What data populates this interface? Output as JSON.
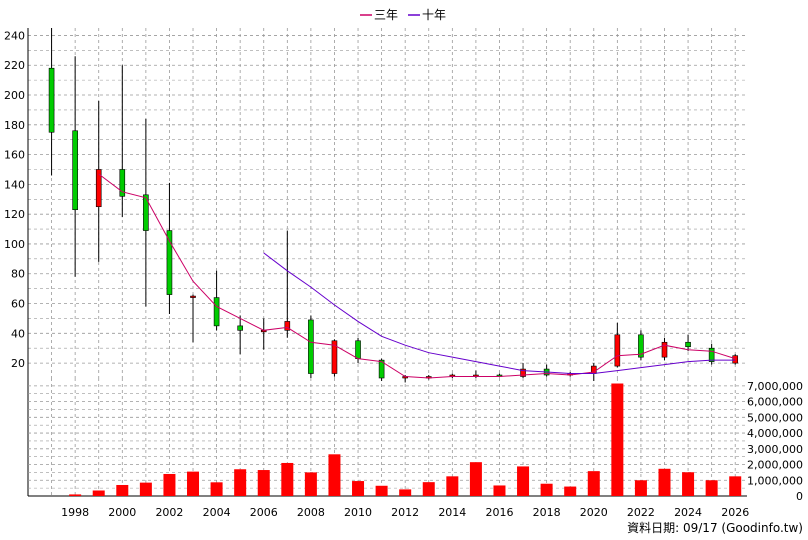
{
  "legend": [
    {
      "label": "三年",
      "color": "#cc0066"
    },
    {
      "label": "十年",
      "color": "#6600cc"
    }
  ],
  "footer": "資料日期: 09/17  (Goodinfo.tw)",
  "colors": {
    "up": "#ff0000",
    "down": "#00cc00",
    "grid": "#999999",
    "volume": "#ff0000"
  },
  "chart_data": [
    {
      "type": "candlestick",
      "name": "price",
      "x_ticks": [
        "1998",
        "2000",
        "2002",
        "2004",
        "2006",
        "2008",
        "2010",
        "2012",
        "2014",
        "2016",
        "2018",
        "2020",
        "2022",
        "2024",
        "2026"
      ],
      "ylim": [
        10,
        245
      ],
      "y_ticks": [
        "20",
        "40",
        "60",
        "80",
        "100",
        "120",
        "140",
        "160",
        "180",
        "200",
        "220",
        "240"
      ],
      "grid": true,
      "candles": [
        {
          "year": 1997,
          "open": 218,
          "close": 175,
          "high": 245,
          "low": 146
        },
        {
          "year": 1998,
          "open": 176,
          "close": 123,
          "high": 226,
          "low": 78
        },
        {
          "year": 1999,
          "open": 125,
          "close": 150,
          "high": 196,
          "low": 88
        },
        {
          "year": 2000,
          "open": 150,
          "close": 132,
          "high": 220,
          "low": 118
        },
        {
          "year": 2001,
          "open": 133,
          "close": 109,
          "high": 184,
          "low": 58
        },
        {
          "year": 2002,
          "open": 109,
          "close": 66,
          "high": 141,
          "low": 53
        },
        {
          "year": 2003,
          "open": 64,
          "close": 65,
          "high": 66,
          "low": 34
        },
        {
          "year": 2004,
          "open": 64,
          "close": 45,
          "high": 82,
          "low": 42
        },
        {
          "year": 2005,
          "open": 45,
          "close": 42,
          "high": 52,
          "low": 26
        },
        {
          "year": 2006,
          "open": 41,
          "close": 42,
          "high": 50,
          "low": 29
        },
        {
          "year": 2007,
          "open": 42,
          "close": 48,
          "high": 109,
          "low": 37
        },
        {
          "year": 2008,
          "open": 49,
          "close": 13,
          "high": 52,
          "low": 10
        },
        {
          "year": 2009,
          "open": 13,
          "close": 35,
          "high": 36,
          "low": 11
        },
        {
          "year": 2010,
          "open": 35,
          "close": 23,
          "high": 37,
          "low": 20
        },
        {
          "year": 2011,
          "open": 22,
          "close": 10,
          "high": 23,
          "low": 8
        },
        {
          "year": 2012,
          "open": 10,
          "close": 11,
          "high": 12,
          "low": 7
        },
        {
          "year": 2013,
          "open": 10,
          "close": 11,
          "high": 12,
          "low": 9
        },
        {
          "year": 2014,
          "open": 11,
          "close": 12,
          "high": 13,
          "low": 10
        },
        {
          "year": 2015,
          "open": 11,
          "close": 12,
          "high": 15,
          "low": 10
        },
        {
          "year": 2016,
          "open": 12,
          "close": 11,
          "high": 13,
          "low": 11
        },
        {
          "year": 2017,
          "open": 11,
          "close": 16,
          "high": 20,
          "low": 10
        },
        {
          "year": 2018,
          "open": 16,
          "close": 12,
          "high": 19,
          "low": 11
        },
        {
          "year": 2019,
          "open": 12,
          "close": 13,
          "high": 14,
          "low": 11
        },
        {
          "year": 2020,
          "open": 13,
          "close": 18,
          "high": 20,
          "low": 8
        },
        {
          "year": 2021,
          "open": 18,
          "close": 39,
          "high": 47,
          "low": 17
        },
        {
          "year": 2022,
          "open": 39,
          "close": 24,
          "high": 42,
          "low": 22
        },
        {
          "year": 2023,
          "open": 24,
          "close": 34,
          "high": 37,
          "low": 22
        },
        {
          "year": 2024,
          "open": 34,
          "close": 31,
          "high": 39,
          "low": 28
        },
        {
          "year": 2025,
          "open": 30,
          "close": 21,
          "high": 33,
          "low": 19
        },
        {
          "year": 2026,
          "open": 20,
          "close": 25,
          "high": 26,
          "low": 19
        }
      ],
      "series": [
        {
          "name": "三年",
          "points": [
            [
              1999,
              147
            ],
            [
              2000,
              135
            ],
            [
              2001,
              131
            ],
            [
              2002,
              102
            ],
            [
              2003,
              75
            ],
            [
              2004,
              58
            ],
            [
              2005,
              50
            ],
            [
              2006,
              42
            ],
            [
              2007,
              44
            ],
            [
              2008,
              34
            ],
            [
              2009,
              32
            ],
            [
              2010,
              23
            ],
            [
              2011,
              21
            ],
            [
              2012,
              11
            ],
            [
              2013,
              10
            ],
            [
              2014,
              11
            ],
            [
              2015,
              11
            ],
            [
              2016,
              11
            ],
            [
              2017,
              12
            ],
            [
              2018,
              13
            ],
            [
              2019,
              12
            ],
            [
              2020,
              14
            ],
            [
              2021,
              25
            ],
            [
              2022,
              26
            ],
            [
              2023,
              32
            ],
            [
              2024,
              29
            ],
            [
              2025,
              28
            ],
            [
              2026,
              23
            ]
          ]
        },
        {
          "name": "十年",
          "points": [
            [
              2006,
              94
            ],
            [
              2007,
              82
            ],
            [
              2008,
              71
            ],
            [
              2009,
              59
            ],
            [
              2010,
              48
            ],
            [
              2011,
              38
            ],
            [
              2012,
              32
            ],
            [
              2013,
              27
            ],
            [
              2014,
              24
            ],
            [
              2015,
              21
            ],
            [
              2016,
              18
            ],
            [
              2017,
              15
            ],
            [
              2018,
              14
            ],
            [
              2019,
              13
            ],
            [
              2020,
              13
            ],
            [
              2021,
              15
            ],
            [
              2022,
              17
            ],
            [
              2023,
              19
            ],
            [
              2024,
              21
            ],
            [
              2025,
              22
            ],
            [
              2026,
              22
            ]
          ]
        }
      ]
    },
    {
      "type": "bar",
      "name": "volume",
      "ylim": [
        0,
        7500000
      ],
      "y_ticks": [
        "0",
        "1,000,000",
        "2,000,000",
        "3,000,000",
        "4,000,000",
        "5,000,000",
        "6,000,000",
        "7,000,000"
      ],
      "grid": true,
      "bars": [
        {
          "year": 1998,
          "value": 100000
        },
        {
          "year": 1999,
          "value": 350000
        },
        {
          "year": 2000,
          "value": 700000
        },
        {
          "year": 2001,
          "value": 850000
        },
        {
          "year": 2002,
          "value": 1400000
        },
        {
          "year": 2003,
          "value": 1550000
        },
        {
          "year": 2004,
          "value": 870000
        },
        {
          "year": 2005,
          "value": 1700000
        },
        {
          "year": 2006,
          "value": 1650000
        },
        {
          "year": 2007,
          "value": 2100000
        },
        {
          "year": 2008,
          "value": 1500000
        },
        {
          "year": 2009,
          "value": 2650000
        },
        {
          "year": 2010,
          "value": 950000
        },
        {
          "year": 2011,
          "value": 650000
        },
        {
          "year": 2012,
          "value": 420000
        },
        {
          "year": 2013,
          "value": 880000
        },
        {
          "year": 2014,
          "value": 1250000
        },
        {
          "year": 2015,
          "value": 2150000
        },
        {
          "year": 2016,
          "value": 670000
        },
        {
          "year": 2017,
          "value": 1880000
        },
        {
          "year": 2018,
          "value": 780000
        },
        {
          "year": 2019,
          "value": 600000
        },
        {
          "year": 2020,
          "value": 1580000
        },
        {
          "year": 2021,
          "value": 7150000
        },
        {
          "year": 2022,
          "value": 1000000
        },
        {
          "year": 2023,
          "value": 1730000
        },
        {
          "year": 2024,
          "value": 1510000
        },
        {
          "year": 2025,
          "value": 1000000
        },
        {
          "year": 2026,
          "value": 1250000
        }
      ]
    }
  ]
}
